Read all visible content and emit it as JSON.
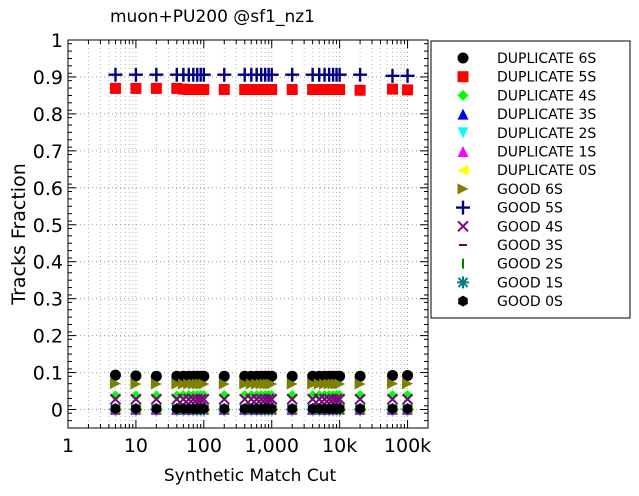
{
  "chart_data": {
    "type": "scatter",
    "title": "muon+PU200 @sf1_nz1",
    "xlabel": "Synthetic Match Cut",
    "ylabel": "Tracks Fraction",
    "x_scale": "log",
    "xlim": [
      1,
      200000
    ],
    "ylim": [
      -0.05,
      1.0
    ],
    "grid": true,
    "legend_position": "right",
    "x_ticks": [
      1,
      10,
      100,
      1000,
      10000,
      100000
    ],
    "x_tick_labels": [
      "1",
      "10",
      "100",
      "1,000",
      "10k",
      "100k"
    ],
    "y_ticks": [
      0,
      0.1,
      0.2,
      0.3,
      0.4,
      0.5,
      0.6,
      0.7,
      0.8,
      0.9,
      1.0
    ],
    "y_tick_labels": [
      "0",
      "0.1",
      "0.2",
      "0.3",
      "0.4",
      "0.5",
      "0.6",
      "0.7",
      "0.8",
      "0.9",
      "1"
    ],
    "x": [
      5,
      10,
      20,
      40,
      50,
      60,
      70,
      80,
      90,
      100,
      200,
      400,
      500,
      600,
      700,
      800,
      900,
      1000,
      2000,
      4000,
      5000,
      6000,
      7000,
      8000,
      9000,
      10000,
      20000,
      60000,
      100000
    ],
    "series": [
      {
        "name": "DUPLICATE 6S",
        "marker": "circle",
        "color": "#000000",
        "values": [
          0.093,
          0.091,
          0.09,
          0.09,
          0.09,
          0.09,
          0.09,
          0.09,
          0.09,
          0.09,
          0.09,
          0.09,
          0.09,
          0.09,
          0.09,
          0.09,
          0.09,
          0.09,
          0.09,
          0.09,
          0.09,
          0.09,
          0.09,
          0.09,
          0.09,
          0.09,
          0.09,
          0.092,
          0.092
        ]
      },
      {
        "name": "DUPLICATE 5S",
        "marker": "square",
        "color": "#ff0000",
        "values": [
          0.869,
          0.869,
          0.869,
          0.869,
          0.867,
          0.866,
          0.866,
          0.866,
          0.866,
          0.866,
          0.866,
          0.866,
          0.866,
          0.866,
          0.866,
          0.866,
          0.866,
          0.866,
          0.866,
          0.866,
          0.866,
          0.866,
          0.866,
          0.866,
          0.866,
          0.866,
          0.864,
          0.867,
          0.865
        ]
      },
      {
        "name": "DUPLICATE 4S",
        "marker": "diamond",
        "color": "#00ff00",
        "values": [
          0.037,
          0.037,
          0.037,
          0.037,
          0.038,
          0.038,
          0.038,
          0.038,
          0.038,
          0.038,
          0.038,
          0.038,
          0.038,
          0.038,
          0.038,
          0.038,
          0.038,
          0.038,
          0.038,
          0.038,
          0.038,
          0.038,
          0.038,
          0.038,
          0.038,
          0.038,
          0.038,
          0.038,
          0.038
        ]
      },
      {
        "name": "DUPLICATE 3S",
        "marker": "triangle-up",
        "color": "#0000ff",
        "values": [
          0.003,
          0.003,
          0.003,
          0.003,
          0.003,
          0.003,
          0.003,
          0.003,
          0.003,
          0.003,
          0.003,
          0.003,
          0.003,
          0.003,
          0.003,
          0.003,
          0.003,
          0.003,
          0.003,
          0.003,
          0.003,
          0.003,
          0.003,
          0.003,
          0.003,
          0.003,
          0.003,
          0.003,
          0.003
        ]
      },
      {
        "name": "DUPLICATE 2S",
        "marker": "triangle-down",
        "color": "#00ffff",
        "values": [
          0,
          0,
          0,
          0,
          0,
          0,
          0,
          0,
          0,
          0,
          0,
          0,
          0,
          0,
          0,
          0,
          0,
          0,
          0,
          0,
          0,
          0,
          0,
          0,
          0,
          0,
          0,
          0,
          0
        ]
      },
      {
        "name": "DUPLICATE 1S",
        "marker": "triangle-up",
        "color": "#ff00ff",
        "values": [
          0,
          0,
          0,
          0,
          0,
          0,
          0,
          0,
          0,
          0,
          0,
          0,
          0,
          0,
          0,
          0,
          0,
          0,
          0,
          0,
          0,
          0,
          0,
          0,
          0,
          0,
          0,
          0,
          0
        ]
      },
      {
        "name": "DUPLICATE 0S",
        "marker": "triangle-left",
        "color": "#ffff00",
        "values": [
          0,
          0,
          0,
          0,
          0,
          0,
          0,
          0,
          0,
          0,
          0,
          0,
          0,
          0,
          0,
          0,
          0,
          0,
          0,
          0,
          0,
          0,
          0,
          0,
          0,
          0,
          0,
          0,
          0
        ]
      },
      {
        "name": "GOOD 6S",
        "marker": "triangle-right",
        "color": "#808000",
        "values": [
          0.07,
          0.069,
          0.069,
          0.069,
          0.069,
          0.069,
          0.069,
          0.069,
          0.069,
          0.069,
          0.069,
          0.069,
          0.069,
          0.069,
          0.069,
          0.069,
          0.069,
          0.069,
          0.069,
          0.069,
          0.069,
          0.069,
          0.069,
          0.069,
          0.069,
          0.069,
          0.069,
          0.07,
          0.07
        ]
      },
      {
        "name": "GOOD 5S",
        "marker": "plus",
        "color": "#000080",
        "values": [
          0.906,
          0.906,
          0.906,
          0.906,
          0.906,
          0.906,
          0.906,
          0.906,
          0.906,
          0.906,
          0.906,
          0.906,
          0.906,
          0.906,
          0.906,
          0.906,
          0.906,
          0.906,
          0.906,
          0.906,
          0.906,
          0.906,
          0.906,
          0.906,
          0.906,
          0.906,
          0.906,
          0.903,
          0.903
        ]
      },
      {
        "name": "GOOD 4S",
        "marker": "x",
        "color": "#800080",
        "values": [
          0.028,
          0.028,
          0.028,
          0.028,
          0.028,
          0.028,
          0.028,
          0.028,
          0.028,
          0.028,
          0.028,
          0.028,
          0.028,
          0.028,
          0.028,
          0.028,
          0.028,
          0.028,
          0.028,
          0.028,
          0.028,
          0.028,
          0.028,
          0.028,
          0.028,
          0.028,
          0.028,
          0.028,
          0.028
        ]
      },
      {
        "name": "GOOD 3S",
        "marker": "hline",
        "color": "#800000",
        "values": [
          0.002,
          0.002,
          0.002,
          0.002,
          0.002,
          0.002,
          0.002,
          0.002,
          0.002,
          0.002,
          0.002,
          0.002,
          0.002,
          0.002,
          0.002,
          0.002,
          0.002,
          0.002,
          0.002,
          0.002,
          0.002,
          0.002,
          0.002,
          0.002,
          0.002,
          0.002,
          0.002,
          0.002,
          0.002
        ]
      },
      {
        "name": "GOOD 2S",
        "marker": "vline",
        "color": "#008000",
        "values": [
          0,
          0,
          0,
          0,
          0,
          0,
          0,
          0,
          0,
          0,
          0,
          0,
          0,
          0,
          0,
          0,
          0,
          0,
          0,
          0,
          0,
          0,
          0,
          0,
          0,
          0,
          0,
          0,
          0
        ]
      },
      {
        "name": "GOOD 1S",
        "marker": "star",
        "color": "#008080",
        "values": [
          0,
          0,
          0,
          0,
          0,
          0,
          0,
          0,
          0,
          0,
          0,
          0,
          0,
          0,
          0,
          0,
          0,
          0,
          0,
          0,
          0,
          0,
          0,
          0,
          0,
          0,
          0,
          0,
          0
        ]
      },
      {
        "name": "GOOD 0S",
        "marker": "hexagon",
        "color": "#000000",
        "values": [
          0.002,
          0.002,
          0.002,
          0.002,
          0.002,
          0.002,
          0.002,
          0.002,
          0.002,
          0.002,
          0.002,
          0.002,
          0.002,
          0.002,
          0.002,
          0.002,
          0.002,
          0.002,
          0.002,
          0.002,
          0.002,
          0.002,
          0.002,
          0.002,
          0.002,
          0.002,
          0.002,
          0.002,
          0.002
        ]
      }
    ]
  }
}
